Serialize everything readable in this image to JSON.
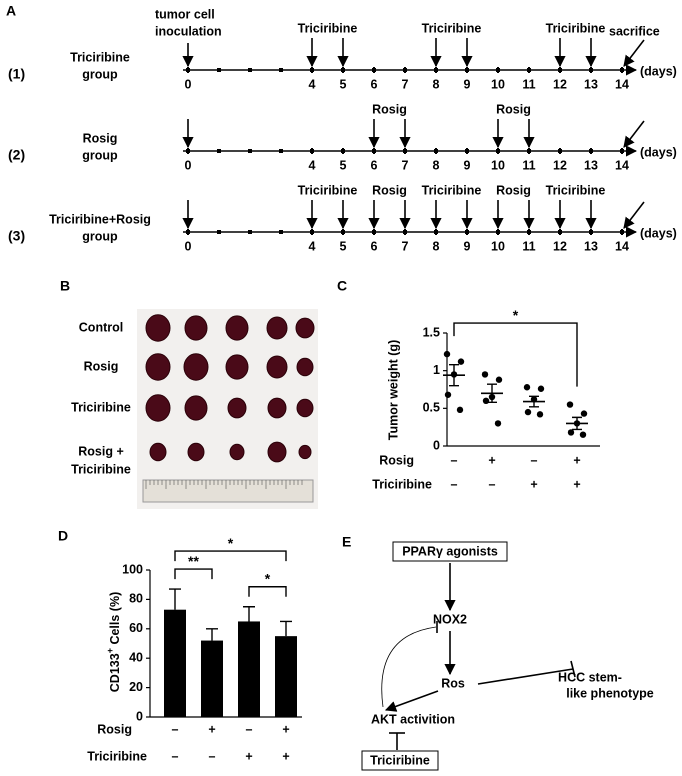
{
  "panel_labels": [
    "A",
    "B",
    "C",
    "D",
    "E"
  ],
  "timeline": {
    "type": "timeline",
    "xlim": [
      0,
      14
    ],
    "days_ticks": [
      0,
      4,
      5,
      6,
      7,
      8,
      9,
      10,
      11,
      12,
      13,
      14
    ],
    "unit": "(days)",
    "start_day": 0,
    "start_label": [
      "tumor cell",
      "inoculation"
    ],
    "end_day": 14,
    "end_label": "sacrifice",
    "groups": [
      {
        "number": "(1)",
        "label": [
          "Triciribine",
          "group"
        ],
        "treatments": [
          {
            "label": "Triciribine",
            "days": [
              4,
              5
            ]
          },
          {
            "label": "Triciribine",
            "days": [
              8,
              9
            ]
          },
          {
            "label": "Triciribine",
            "days": [
              12,
              13
            ]
          }
        ]
      },
      {
        "number": "(2)",
        "label": [
          "Rosig",
          "group"
        ],
        "treatments": [
          {
            "label": "Rosig",
            "days": [
              6,
              7
            ]
          },
          {
            "label": "Rosig",
            "days": [
              10,
              11
            ]
          }
        ]
      },
      {
        "number": "(3)",
        "label": [
          "Triciribine+Rosig",
          "group"
        ],
        "treatments": [
          {
            "label": "Triciribine",
            "days": [
              4,
              5
            ]
          },
          {
            "label": "Rosig",
            "days": [
              6,
              7
            ]
          },
          {
            "label": "Triciribine",
            "days": [
              8,
              9
            ]
          },
          {
            "label": "Rosig",
            "days": [
              10,
              11
            ]
          },
          {
            "label": "Triciribine",
            "days": [
              12,
              13
            ]
          }
        ]
      }
    ]
  },
  "tumor_photo": {
    "row_labels": [
      [
        "Control"
      ],
      [
        "Rosig"
      ],
      [
        "Triciribine"
      ],
      [
        "Rosig +",
        "Triciribine"
      ]
    ]
  },
  "chart_data": [
    {
      "type": "dot_plot",
      "y_label": "Tumor weight (g)",
      "ylim": [
        0,
        1.5
      ],
      "yticks": [
        0,
        0.5,
        1,
        1.5
      ],
      "points": [
        [
          1.22,
          1.12,
          0.95,
          0.68,
          0.48
        ],
        [
          0.95,
          0.88,
          0.65,
          0.6,
          0.3
        ],
        [
          0.78,
          0.76,
          0.62,
          0.45,
          0.42
        ],
        [
          0.55,
          0.43,
          0.3,
          0.18,
          0.15
        ]
      ],
      "means": [
        0.94,
        0.7,
        0.59,
        0.3
      ],
      "sems": [
        0.14,
        0.12,
        0.07,
        0.08
      ],
      "color": "#000000",
      "factors": [
        {
          "name": "Rosig",
          "signs": [
            "–",
            "+",
            "–",
            "+"
          ]
        },
        {
          "name": "Triciribine",
          "signs": [
            "–",
            "–",
            "+",
            "+"
          ]
        }
      ],
      "significance": [
        {
          "groups": [
            0,
            3
          ],
          "label": "*"
        }
      ]
    },
    {
      "type": "bar",
      "y_label": [
        "CD133",
        "+",
        " Cells (%)"
      ],
      "ylim": [
        0,
        100
      ],
      "yticks": [
        0,
        20,
        40,
        60,
        80,
        100
      ],
      "values": [
        73,
        52,
        65,
        55
      ],
      "errors": [
        14,
        8,
        10,
        10
      ],
      "color": "#000000",
      "factors": [
        {
          "name": "Rosig",
          "signs": [
            "–",
            "+",
            "–",
            "+"
          ]
        },
        {
          "name": "Triciribine",
          "signs": [
            "–",
            "–",
            "+",
            "+"
          ]
        }
      ],
      "significance": [
        {
          "groups": [
            0,
            1
          ],
          "label": "**"
        },
        {
          "groups": [
            2,
            3
          ],
          "label": "*"
        },
        {
          "groups": [
            0,
            3
          ],
          "label": "*"
        }
      ]
    }
  ],
  "pathway": {
    "nodes": [
      {
        "label": "PPARγ agonists"
      },
      {
        "label": "NOX2"
      },
      {
        "label": "Ros"
      },
      {
        "label": [
          "HCC stem-",
          "like phenotype"
        ]
      },
      {
        "label": "AKT activition"
      },
      {
        "label": "Triciribine"
      }
    ]
  }
}
